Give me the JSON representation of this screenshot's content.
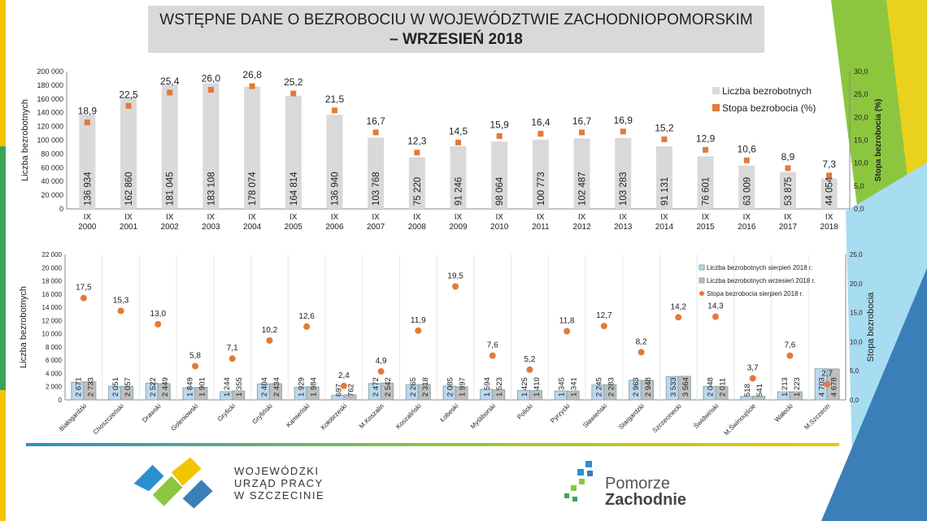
{
  "title": {
    "line1": "WSTĘPNE DANE O BEZROBOCIU W WOJEWÓDZTWIE ZACHODNIOPOMORSKIM",
    "line2": "– WRZESIEŃ 2018"
  },
  "chart_data": [
    {
      "type": "bar",
      "ylabel": "Liczba bezrobotnych",
      "y2label": "Stopa bezrobocia (%)",
      "ylim": [
        0,
        200000
      ],
      "y2lim": [
        0,
        30
      ],
      "legend_position": "right",
      "yticks": [
        "0",
        "20 000",
        "40 000",
        "60 000",
        "80 000",
        "100 000",
        "120 000",
        "140 000",
        "160 000",
        "180 000",
        "200 000"
      ],
      "y2ticks": [
        "0,0",
        "5,0",
        "10,0",
        "15,0",
        "20,0",
        "25,0",
        "30,0"
      ],
      "categories": [
        "IX 2000",
        "IX 2001",
        "IX 2002",
        "IX 2003",
        "IX 2004",
        "IX 2005",
        "IX 2006",
        "IX 2007",
        "IX 2008",
        "IX 2009",
        "IX 2010",
        "IX 2011",
        "IX 2012",
        "IX 2013",
        "IX 2014",
        "IX 2015",
        "IX 2016",
        "IX 2017",
        "IX 2018"
      ],
      "series": [
        {
          "name": "Liczba bezrobotnych",
          "type": "bar",
          "color": "#d9d9d9",
          "values": [
            136934,
            162860,
            181045,
            183108,
            178074,
            164814,
            136940,
            103768,
            75220,
            91246,
            98064,
            100773,
            102487,
            103283,
            91131,
            76601,
            63009,
            53875,
            44054
          ],
          "labels": [
            "136 934",
            "162 860",
            "181 045",
            "183 108",
            "178 074",
            "164 814",
            "136 940",
            "103 768",
            "75 220",
            "91 246",
            "98 064",
            "100 773",
            "102 487",
            "103 283",
            "91 131",
            "76 601",
            "63 009",
            "53 875",
            "44 054"
          ]
        },
        {
          "name": "Stopa bezrobocia (%)",
          "type": "scatter",
          "axis": "right",
          "color": "#e07b39",
          "values": [
            18.9,
            22.5,
            25.4,
            26.0,
            26.8,
            25.2,
            21.5,
            16.7,
            12.3,
            14.5,
            15.9,
            16.4,
            16.7,
            16.9,
            15.2,
            12.9,
            10.6,
            8.9,
            7.3
          ],
          "labels": [
            "18,9",
            "22,5",
            "25,4",
            "26,0",
            "26,8",
            "25,2",
            "21,5",
            "16,7",
            "12,3",
            "14,5",
            "15,9",
            "16,4",
            "16,7",
            "16,9",
            "15,2",
            "12,9",
            "10,6",
            "8,9",
            "7,3"
          ]
        }
      ]
    },
    {
      "type": "bar",
      "ylabel": "Liczba bezrobotnych",
      "y2label": "Stopa bezrobocia",
      "ylim": [
        0,
        22000
      ],
      "y2lim": [
        0,
        25
      ],
      "legend_position": "top-right",
      "yticks": [
        "0",
        "2 000",
        "4 000",
        "6 000",
        "8 000",
        "10 000",
        "12 000",
        "14 000",
        "16 000",
        "18 000",
        "20 000",
        "22 000"
      ],
      "y2ticks": [
        "0,0",
        "5,0",
        "10,0",
        "15,0",
        "20,0",
        "25,0"
      ],
      "categories": [
        "Białogardzki",
        "Choszczeński",
        "Drawski",
        "Goleniowski",
        "Gryficki",
        "Gryfiński",
        "Kamieński",
        "Kołobrzeski",
        "M.Koszalin",
        "Koszaliński",
        "Łobeski",
        "Myśliborski",
        "Policki",
        "Pyrzycki",
        "Sławieński",
        "Stargardzki",
        "Szczecinecki",
        "Świdwiński",
        "M.Świnoujście",
        "Wałecki",
        "M.Szczecin"
      ],
      "series": [
        {
          "name": "Liczba bezrobotnych sierpień 2018 r.",
          "type": "bar",
          "color": "#bdd7ee",
          "values": [
            2671,
            2051,
            2522,
            1849,
            1244,
            2404,
            1929,
            697,
            2472,
            2265,
            2085,
            1594,
            1425,
            1345,
            2245,
            2963,
            3533,
            2048,
            518,
            1213,
            4703
          ],
          "labels": [
            "2 671",
            "2 051",
            "2 522",
            "1 849",
            "1 244",
            "2 404",
            "1 929",
            "697",
            "2 472",
            "2 265",
            "2 085",
            "1 594",
            "1 425",
            "1 345",
            "2 245",
            "2 963",
            "3 533",
            "2 048",
            "518",
            "1 213",
            "4 703"
          ]
        },
        {
          "name": "Liczba bezrobotnych wrzesień 2018 r.",
          "type": "bar",
          "color": "#bfbfbf",
          "values": [
            2733,
            2057,
            2449,
            1901,
            1355,
            2434,
            1984,
            762,
            2542,
            2318,
            1997,
            1523,
            1410,
            1341,
            2283,
            2948,
            3564,
            2011,
            541,
            1223,
            4678
          ],
          "labels": [
            "2 733",
            "2 057",
            "2 449",
            "1 901",
            "1 355",
            "2 434",
            "1 984",
            "762",
            "2 542",
            "2 318",
            "1 997",
            "1 523",
            "1 410",
            "1 341",
            "2 283",
            "2 948",
            "3 564",
            "2 011",
            "541",
            "1 223",
            "4 678"
          ]
        },
        {
          "name": "Stopa bezrobocia sierpień 2018 r.",
          "type": "scatter",
          "axis": "right",
          "color": "#e07b39",
          "values": [
            17.5,
            15.3,
            13.0,
            5.8,
            7.1,
            10.2,
            12.6,
            2.4,
            4.9,
            11.9,
            19.5,
            7.6,
            5.2,
            11.8,
            12.7,
            8.2,
            14.2,
            14.3,
            3.7,
            7.6,
            2.7
          ],
          "labels": [
            "17,5",
            "15,3",
            "13,0",
            "5,8",
            "7,1",
            "10,2",
            "12,6",
            "2,4",
            "4,9",
            "11,9",
            "19,5",
            "7,6",
            "5,2",
            "11,8",
            "12,7",
            "8,2",
            "14,2",
            "14,3",
            "3,7",
            "7,6",
            "2,7"
          ]
        }
      ]
    }
  ],
  "logos": {
    "wup": [
      "WOJEWÓDZKI",
      "URZĄD PRACY",
      "W SZCZECINIE"
    ],
    "pz": [
      "Pomorze",
      "Zachodnie"
    ]
  }
}
